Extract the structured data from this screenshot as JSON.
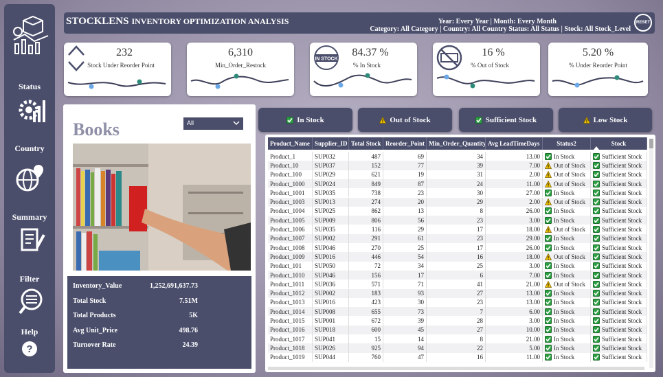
{
  "header": {
    "title_main": "STOCKLENS",
    "title_rest": "INVENTORY OPTIMIZATION ANALYSIS",
    "filter_line1": "Year: Every Year | Month: Every Month",
    "filter_line2": "Category: All Category | Country: All Country Status: All Status | Stock: All Stock_Level",
    "reset": "RESET"
  },
  "sidebar": [
    "Status",
    "Country",
    "Summary",
    "Filter",
    "Help"
  ],
  "kpis": [
    {
      "value": "232",
      "label": "Stock Under Reorder Point"
    },
    {
      "value": "6,310",
      "label": "Min_Order_Restock"
    },
    {
      "value": "84.37 %",
      "label": "% In Stock"
    },
    {
      "value": "16 %",
      "label": "% Out of Stock"
    },
    {
      "value": "5.20 %",
      "label": "% Under Reorder Point"
    }
  ],
  "category_panel": {
    "title": "Books",
    "dropdown": "All",
    "stats": [
      {
        "label": "Inventory_Value",
        "value": "1,252,691,637.73"
      },
      {
        "label": "Total Stock",
        "value": "7.51M"
      },
      {
        "label": "Total Products",
        "value": "5K"
      },
      {
        "label": "Avg Unit_Price",
        "value": "498.76"
      },
      {
        "label": "Turnover Rate",
        "value": "24.39"
      }
    ]
  },
  "buttons": [
    "In Stock",
    "Out of Stock",
    "Sufficient Stock",
    "Low Stock"
  ],
  "table": {
    "columns": [
      "Product_Name",
      "Supplier_ID",
      "Total Stock",
      "Reorder_Point",
      "Min_Order_Quantity",
      "Avg LeadTimeDays",
      "Status2",
      "Stock"
    ],
    "rows": [
      [
        "Product_1",
        "SUP032",
        "487",
        "69",
        "34",
        "13.00",
        "In Stock",
        "Sufficient Stock"
      ],
      [
        "Product_10",
        "SUP037",
        "152",
        "77",
        "39",
        "7.00",
        "Out of Stock",
        "Sufficient Stock"
      ],
      [
        "Product_100",
        "SUP029",
        "621",
        "19",
        "31",
        "2.00",
        "Out of Stock",
        "Sufficient Stock"
      ],
      [
        "Product_1000",
        "SUP024",
        "849",
        "87",
        "24",
        "11.00",
        "Out of Stock",
        "Sufficient Stock"
      ],
      [
        "Product_1001",
        "SUP035",
        "738",
        "23",
        "30",
        "27.00",
        "In Stock",
        "Sufficient Stock"
      ],
      [
        "Product_1003",
        "SUP013",
        "274",
        "20",
        "29",
        "2.00",
        "Out of Stock",
        "Sufficient Stock"
      ],
      [
        "Product_1004",
        "SUP025",
        "862",
        "13",
        "8",
        "26.00",
        "In Stock",
        "Sufficient Stock"
      ],
      [
        "Product_1005",
        "SUP009",
        "806",
        "56",
        "23",
        "3.00",
        "In Stock",
        "Sufficient Stock"
      ],
      [
        "Product_1006",
        "SUP035",
        "116",
        "29",
        "17",
        "18.00",
        "Out of Stock",
        "Sufficient Stock"
      ],
      [
        "Product_1007",
        "SUP002",
        "291",
        "61",
        "23",
        "29.00",
        "In Stock",
        "Sufficient Stock"
      ],
      [
        "Product_1008",
        "SUP046",
        "270",
        "25",
        "17",
        "26.00",
        "In Stock",
        "Sufficient Stock"
      ],
      [
        "Product_1009",
        "SUP016",
        "446",
        "54",
        "16",
        "18.00",
        "Out of Stock",
        "Sufficient Stock"
      ],
      [
        "Product_101",
        "SUP050",
        "72",
        "34",
        "25",
        "3.00",
        "In Stock",
        "Sufficient Stock"
      ],
      [
        "Product_1010",
        "SUP046",
        "156",
        "17",
        "6",
        "7.00",
        "In Stock",
        "Sufficient Stock"
      ],
      [
        "Product_1011",
        "SUP036",
        "571",
        "71",
        "41",
        "21.00",
        "Out of Stock",
        "Sufficient Stock"
      ],
      [
        "Product_1012",
        "SUP002",
        "183",
        "93",
        "27",
        "13.00",
        "In Stock",
        "Sufficient Stock"
      ],
      [
        "Product_1013",
        "SUP016",
        "423",
        "30",
        "23",
        "13.00",
        "In Stock",
        "Sufficient Stock"
      ],
      [
        "Product_1014",
        "SUP008",
        "655",
        "73",
        "7",
        "6.00",
        "In Stock",
        "Sufficient Stock"
      ],
      [
        "Product_1015",
        "SUP001",
        "672",
        "39",
        "28",
        "3.00",
        "In Stock",
        "Sufficient Stock"
      ],
      [
        "Product_1016",
        "SUP018",
        "600",
        "45",
        "27",
        "10.00",
        "In Stock",
        "Sufficient Stock"
      ],
      [
        "Product_1017",
        "SUP041",
        "15",
        "14",
        "8",
        "21.00",
        "In Stock",
        "Sufficient Stock"
      ],
      [
        "Product_1018",
        "SUP026",
        "925",
        "94",
        "22",
        "5.00",
        "In Stock",
        "Sufficient Stock"
      ],
      [
        "Product_1019",
        "SUP044",
        "760",
        "47",
        "16",
        "11.00",
        "In Stock",
        "Sufficient Stock"
      ]
    ]
  }
}
